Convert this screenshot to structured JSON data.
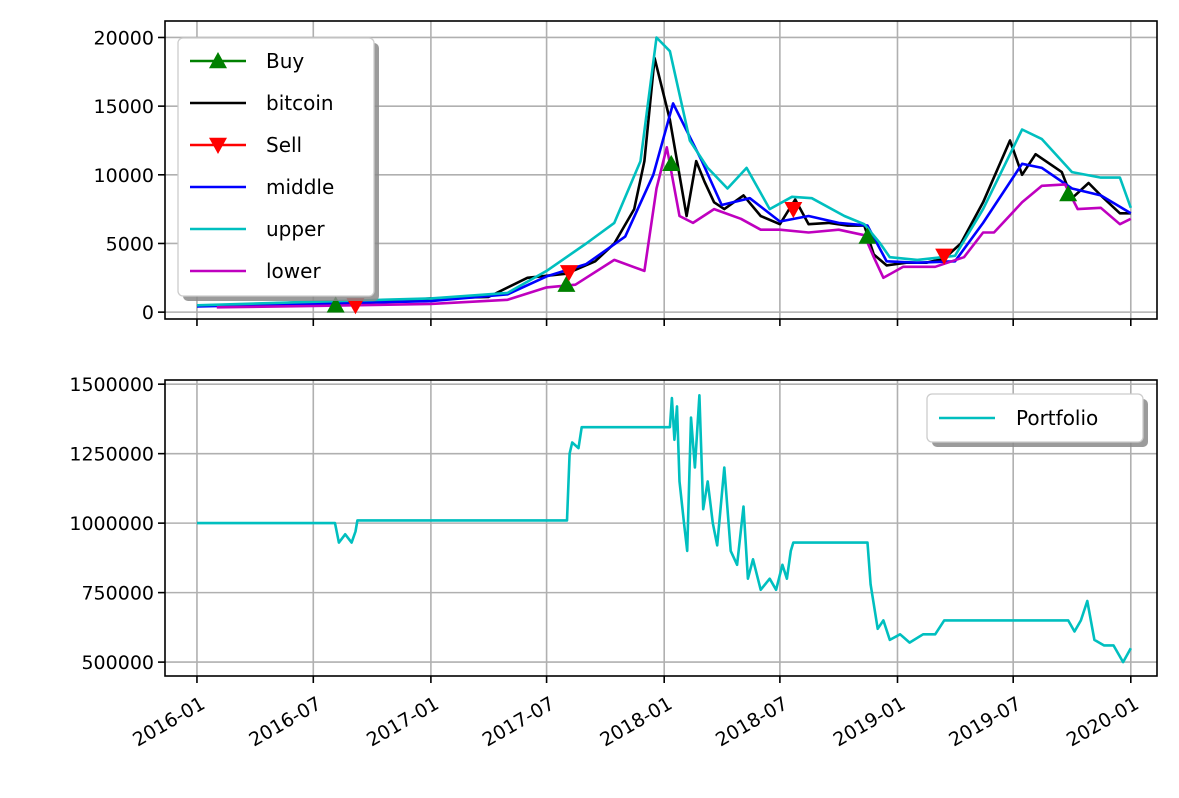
{
  "chart_data": [
    {
      "type": "line",
      "title": "",
      "xlabel": "",
      "ylabel": "",
      "xlim": [
        "2015-11-12",
        "2020-02-11"
      ],
      "ylim": [
        -500,
        21200
      ],
      "grid": true,
      "legend_position": "top-left",
      "x_ticks": [
        "2016-01",
        "2016-07",
        "2017-01",
        "2017-07",
        "2018-01",
        "2018-07",
        "2019-01",
        "2019-07",
        "2020-01"
      ],
      "y_ticks": [
        0,
        5000,
        10000,
        15000,
        20000
      ],
      "y_tick_labels": [
        "0",
        "5000",
        "10000",
        "15000",
        "20000"
      ],
      "series": [
        {
          "name": "bitcoin",
          "color": "#000000",
          "style": "line",
          "x": [
            "2016-01-01",
            "2016-06-01",
            "2016-09-01",
            "2017-01-01",
            "2017-04-01",
            "2017-06-01",
            "2017-08-01",
            "2017-09-15",
            "2017-10-15",
            "2017-11-15",
            "2017-12-01",
            "2017-12-17",
            "2018-01-10",
            "2018-02-05",
            "2018-02-20",
            "2018-03-05",
            "2018-03-20",
            "2018-04-05",
            "2018-05-05",
            "2018-06-01",
            "2018-07-01",
            "2018-07-25",
            "2018-08-15",
            "2018-09-15",
            "2018-10-15",
            "2018-11-10",
            "2018-11-25",
            "2018-12-15",
            "2019-01-15",
            "2019-02-15",
            "2019-03-15",
            "2019-04-10",
            "2019-05-15",
            "2019-06-26",
            "2019-07-15",
            "2019-08-05",
            "2019-09-15",
            "2019-10-01",
            "2019-10-27",
            "2019-11-15",
            "2019-12-15",
            "2020-01-01"
          ],
          "y": [
            430,
            700,
            600,
            1000,
            1100,
            2500,
            2800,
            3700,
            5000,
            7500,
            11000,
            18500,
            14000,
            7000,
            11000,
            9500,
            8000,
            7500,
            8500,
            7000,
            6400,
            8200,
            6400,
            6500,
            6300,
            6300,
            4200,
            3400,
            3600,
            3600,
            3900,
            5000,
            8000,
            12500,
            10000,
            11500,
            10200,
            8300,
            9400,
            8500,
            7200,
            7200
          ]
        },
        {
          "name": "middle",
          "color": "#0000ff",
          "style": "line",
          "x": [
            "2016-01-01",
            "2016-07-01",
            "2017-01-01",
            "2017-05-01",
            "2017-07-01",
            "2017-09-01",
            "2017-11-01",
            "2017-12-15",
            "2018-01-15",
            "2018-03-01",
            "2018-04-01",
            "2018-05-15",
            "2018-07-01",
            "2018-08-15",
            "2018-10-01",
            "2018-11-15",
            "2018-12-15",
            "2019-02-01",
            "2019-04-01",
            "2019-05-15",
            "2019-07-15",
            "2019-08-15",
            "2019-10-01",
            "2019-11-15",
            "2020-01-01"
          ],
          "y": [
            420,
            600,
            800,
            1300,
            2600,
            3500,
            5500,
            10000,
            15200,
            11000,
            7800,
            8300,
            6600,
            7000,
            6500,
            6300,
            3700,
            3600,
            3700,
            6500,
            10800,
            10500,
            9000,
            8500,
            7200
          ]
        },
        {
          "name": "upper",
          "color": "#00bfbf",
          "style": "line",
          "x": [
            "2016-01-01",
            "2016-07-01",
            "2017-01-01",
            "2017-05-01",
            "2017-07-01",
            "2017-09-01",
            "2017-10-15",
            "2017-11-25",
            "2017-12-20",
            "2018-01-10",
            "2018-02-10",
            "2018-03-10",
            "2018-04-10",
            "2018-05-10",
            "2018-06-15",
            "2018-07-20",
            "2018-08-20",
            "2018-10-10",
            "2018-11-10",
            "2018-12-05",
            "2018-12-20",
            "2019-02-01",
            "2019-04-01",
            "2019-05-15",
            "2019-07-15",
            "2019-08-15",
            "2019-10-01",
            "2019-11-15",
            "2019-12-15",
            "2020-01-01"
          ],
          "y": [
            500,
            750,
            1000,
            1400,
            3000,
            5000,
            6500,
            11000,
            20000,
            19000,
            12500,
            10500,
            9000,
            10500,
            7500,
            8400,
            8300,
            7000,
            6400,
            5000,
            4000,
            3800,
            4100,
            7500,
            13300,
            12600,
            10200,
            9800,
            9800,
            7600
          ]
        },
        {
          "name": "lower",
          "color": "#bf00bf",
          "style": "line",
          "x": [
            "2016-02-01",
            "2016-07-01",
            "2017-01-01",
            "2017-05-01",
            "2017-07-01",
            "2017-08-15",
            "2017-10-15",
            "2017-12-01",
            "2017-12-20",
            "2018-01-05",
            "2018-01-25",
            "2018-02-15",
            "2018-03-20",
            "2018-05-01",
            "2018-06-01",
            "2018-07-01",
            "2018-08-15",
            "2018-10-01",
            "2018-11-10",
            "2018-11-25",
            "2018-12-10",
            "2019-01-10",
            "2019-03-01",
            "2019-04-15",
            "2019-05-15",
            "2019-06-01",
            "2019-07-15",
            "2019-08-15",
            "2019-09-20",
            "2019-10-10",
            "2019-11-15",
            "2019-12-15",
            "2020-01-01"
          ],
          "y": [
            350,
            450,
            600,
            900,
            1800,
            2000,
            3800,
            3000,
            9000,
            12000,
            7000,
            6500,
            7500,
            6800,
            6000,
            6000,
            5800,
            6000,
            5600,
            4000,
            2500,
            3300,
            3300,
            4000,
            5800,
            5800,
            8000,
            9200,
            9300,
            7500,
            7600,
            6400,
            6800
          ]
        },
        {
          "name": "Buy",
          "color": "#008000",
          "style": "marker-up",
          "x": [
            "2016-08-05",
            "2017-08-01",
            "2018-01-12",
            "2018-11-15",
            "2019-09-25"
          ],
          "y": [
            500,
            2000,
            10800,
            5500,
            8600
          ]
        },
        {
          "name": "Sell",
          "color": "#ff0000",
          "style": "marker-down",
          "x": [
            "2016-09-05",
            "2017-08-05",
            "2018-07-22",
            "2019-03-15"
          ],
          "y": [
            500,
            2900,
            7500,
            4100
          ]
        }
      ]
    },
    {
      "type": "line",
      "title": "",
      "xlabel": "",
      "ylabel": "",
      "xlim": [
        "2015-11-12",
        "2020-02-11"
      ],
      "ylim": [
        450000,
        1515000
      ],
      "grid": true,
      "legend_position": "top-right",
      "x_ticks": [
        "2016-01",
        "2016-07",
        "2017-01",
        "2017-07",
        "2018-01",
        "2018-07",
        "2019-01",
        "2019-07",
        "2020-01"
      ],
      "y_ticks": [
        500000,
        750000,
        1000000,
        1250000,
        1500000
      ],
      "y_tick_labels": [
        "500000",
        "750000",
        "1000000",
        "1250000",
        "1500000"
      ],
      "series": [
        {
          "name": "Portfolio",
          "color": "#00bfbf",
          "style": "line",
          "x": [
            "2016-01-01",
            "2016-08-04",
            "2016-08-10",
            "2016-08-20",
            "2016-08-30",
            "2016-09-05",
            "2016-09-08",
            "2017-08-02",
            "2017-08-06",
            "2017-08-10",
            "2017-08-20",
            "2017-08-25",
            "2018-01-10",
            "2018-01-13",
            "2018-01-17",
            "2018-01-21",
            "2018-01-25",
            "2018-02-01",
            "2018-02-06",
            "2018-02-12",
            "2018-02-18",
            "2018-02-25",
            "2018-03-03",
            "2018-03-10",
            "2018-03-18",
            "2018-03-25",
            "2018-04-05",
            "2018-04-15",
            "2018-04-25",
            "2018-05-05",
            "2018-05-12",
            "2018-05-20",
            "2018-06-01",
            "2018-06-15",
            "2018-06-25",
            "2018-07-05",
            "2018-07-12",
            "2018-07-18",
            "2018-07-22",
            "2018-11-15",
            "2018-11-20",
            "2018-12-01",
            "2018-12-10",
            "2018-12-20",
            "2019-01-05",
            "2019-01-20",
            "2019-02-10",
            "2019-03-01",
            "2019-03-15",
            "2019-09-25",
            "2019-10-05",
            "2019-10-15",
            "2019-10-25",
            "2019-11-05",
            "2019-11-20",
            "2019-12-05",
            "2019-12-20",
            "2020-01-01"
          ],
          "y": [
            1000000,
            1000000,
            930000,
            960000,
            930000,
            970000,
            1010000,
            1010000,
            1250000,
            1290000,
            1270000,
            1345000,
            1345000,
            1450000,
            1300000,
            1420000,
            1150000,
            1000000,
            900000,
            1380000,
            1200000,
            1460000,
            1050000,
            1150000,
            1000000,
            920000,
            1200000,
            900000,
            850000,
            1060000,
            800000,
            870000,
            760000,
            800000,
            760000,
            850000,
            800000,
            900000,
            930000,
            930000,
            780000,
            620000,
            650000,
            580000,
            600000,
            570000,
            600000,
            600000,
            650000,
            650000,
            610000,
            650000,
            720000,
            580000,
            560000,
            560000,
            500000,
            550000
          ]
        }
      ]
    }
  ]
}
